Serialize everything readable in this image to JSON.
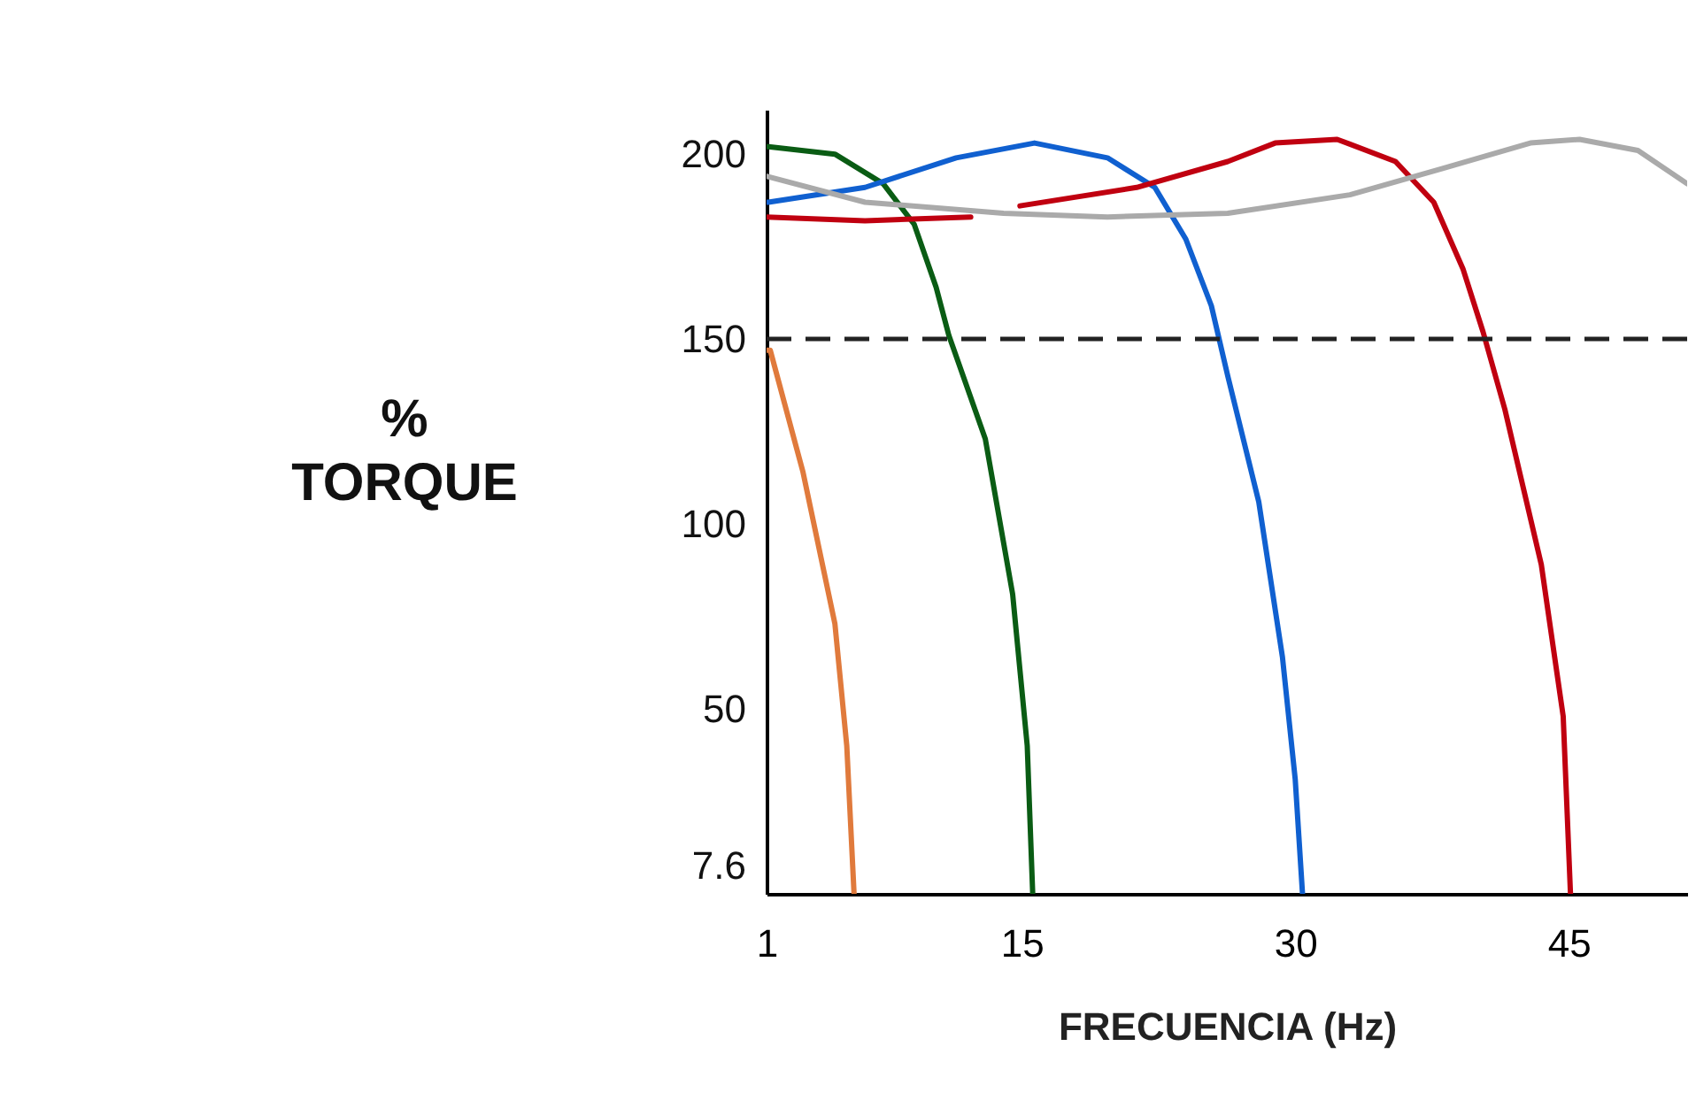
{
  "chart_data": {
    "type": "line",
    "xlabel": "FRECUENCIA (Hz)",
    "ylabel": "%\nTORQUE",
    "xlim": [
      1,
      51.5
    ],
    "xticks": [
      1,
      15,
      30,
      45
    ],
    "ylim": [
      0,
      212
    ],
    "yticks": [
      7.6,
      50,
      100,
      150,
      200
    ],
    "grid": false,
    "marker": "none",
    "line_style": "solid",
    "ref_lines": [
      {
        "axis": "y",
        "value": 150,
        "color": "#222222",
        "line_style": "dashed"
      }
    ],
    "series": [
      {
        "color": "#e07a3c",
        "x": [
          1,
          1.2,
          3.0,
          4.75,
          5.4,
          5.8
        ],
        "values": [
          147,
          147,
          114,
          73,
          40,
          0
        ]
      },
      {
        "color": "#0a5c14",
        "x": [
          1,
          1.1,
          4.75,
          7.4,
          9.1,
          10.3,
          11.0,
          13.0,
          14.5,
          15.3,
          15.6
        ],
        "values": [
          202,
          202,
          200,
          192,
          181,
          164,
          151,
          123,
          81,
          40,
          0
        ]
      },
      {
        "color": "#1060d0",
        "x": [
          1,
          1.1,
          6.4,
          11.4,
          15.7,
          19.7,
          22.3,
          24.0,
          25.4,
          26.3,
          28.0,
          29.3,
          30.0,
          30.4
        ],
        "values": [
          187,
          187,
          191,
          199,
          203,
          199,
          191,
          177,
          159,
          140,
          106,
          64,
          31,
          0
        ]
      },
      {
        "color": "#c00010",
        "x": [
          1,
          6.4,
          12.2,
          13.5,
          14.9,
          21.3,
          26.3,
          28.9,
          32.3,
          35.5,
          37.6,
          39.2,
          40.3,
          41.5,
          43.5,
          44.7,
          45.1
        ],
        "values": [
          183,
          182,
          183,
          null,
          186,
          191,
          198,
          203,
          204,
          198,
          187,
          169,
          152,
          131,
          89,
          48,
          0
        ]
      },
      {
        "color": "#aaaaaa",
        "x": [
          1,
          6.4,
          14,
          19.7,
          26.3,
          33,
          38,
          42.9,
          45.6,
          48.8,
          51.5
        ],
        "values": [
          194,
          187,
          184,
          183,
          184,
          189,
          196,
          203,
          204,
          201,
          192
        ]
      }
    ]
  }
}
